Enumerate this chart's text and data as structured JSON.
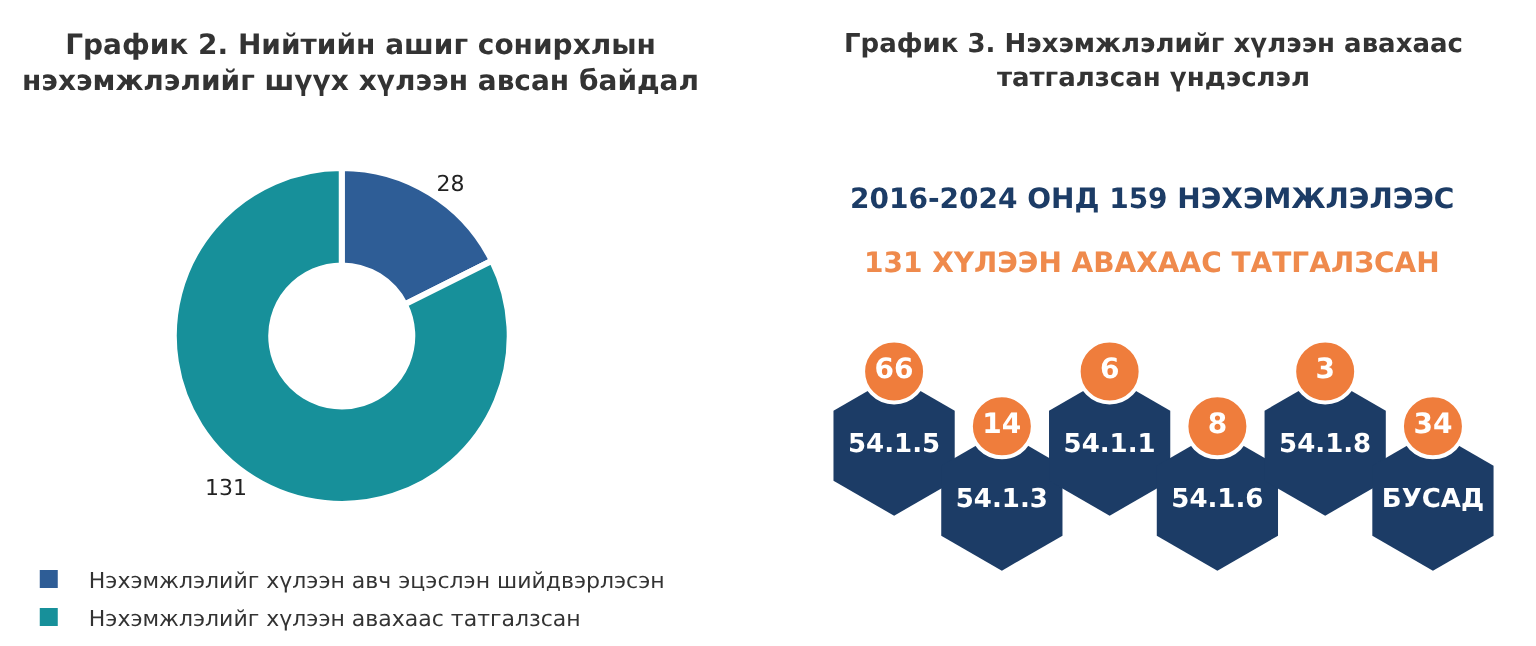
{
  "chart_data": [
    {
      "type": "donut",
      "title": "График 2. Нийтийн ашиг сонирхлын\nнэхэмжлэлийг шүүх хүлээн авсан байдал",
      "categories": [
        "Нэхэмжлэлийг хүлээн авч эцэслэн шийдвэрлэсэн",
        "Нэхэмжлэлийг хүлээн авахаас татгалзсан"
      ],
      "values": [
        28,
        131
      ],
      "colors": [
        "#2e5d96",
        "#17909a"
      ],
      "data_labels": true,
      "legend": "bottom"
    },
    {
      "type": "other",
      "title": "График 3. Нэхэмжлэлийг хүлээн авахаас\nтатгалзсан үндэслэл",
      "subtitle": "2016-2024 ОНД 159 НЭХЭМЖЛЭЛЭЭС",
      "annotations": [
        "131 ХҮЛЭЭН АВАХААС ТАТГАЛЗСАН"
      ],
      "categories": [
        "54.1.5",
        "54.1.3",
        "54.1.1",
        "54.1.6",
        "54.1.8",
        "БУСАД"
      ],
      "values": [
        66,
        14,
        6,
        8,
        3,
        34
      ],
      "data_labels": true
    }
  ]
}
